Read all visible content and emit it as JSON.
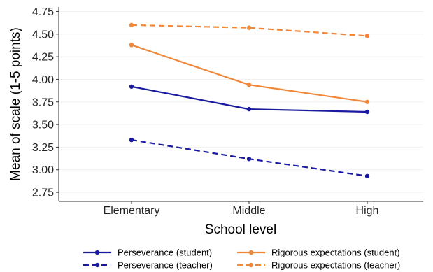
{
  "chart_data": {
    "type": "line",
    "categories": [
      "Elementary",
      "Middle",
      "High"
    ],
    "xlabel": "School level",
    "ylabel": "Mean of scale (1-5 points)",
    "ylim": [
      2.65,
      4.8
    ],
    "yticks": [
      2.75,
      3.0,
      3.25,
      3.5,
      3.75,
      4.0,
      4.25,
      4.5,
      4.75
    ],
    "ytick_labels": [
      "2.75",
      "3.00",
      "3.25",
      "3.50",
      "3.75",
      "4.00",
      "4.25",
      "4.50",
      "4.75"
    ],
    "grid": true,
    "legend_position": "bottom",
    "series": [
      {
        "name": "Perseverance (student)",
        "values": [
          3.92,
          3.67,
          3.64
        ],
        "color": "#1a1aa0",
        "dash": "solid"
      },
      {
        "name": "Rigorous expectations (student)",
        "values": [
          4.38,
          3.94,
          3.75
        ],
        "color": "#f0883c",
        "dash": "solid"
      },
      {
        "name": "Perseverance (teacher)",
        "values": [
          3.33,
          3.12,
          2.93
        ],
        "color": "#1a1aa0",
        "dash": "dashed"
      },
      {
        "name": "Rigorous expectations (teacher)",
        "values": [
          4.6,
          4.57,
          4.48
        ],
        "color": "#f0883c",
        "dash": "dashed"
      }
    ]
  }
}
